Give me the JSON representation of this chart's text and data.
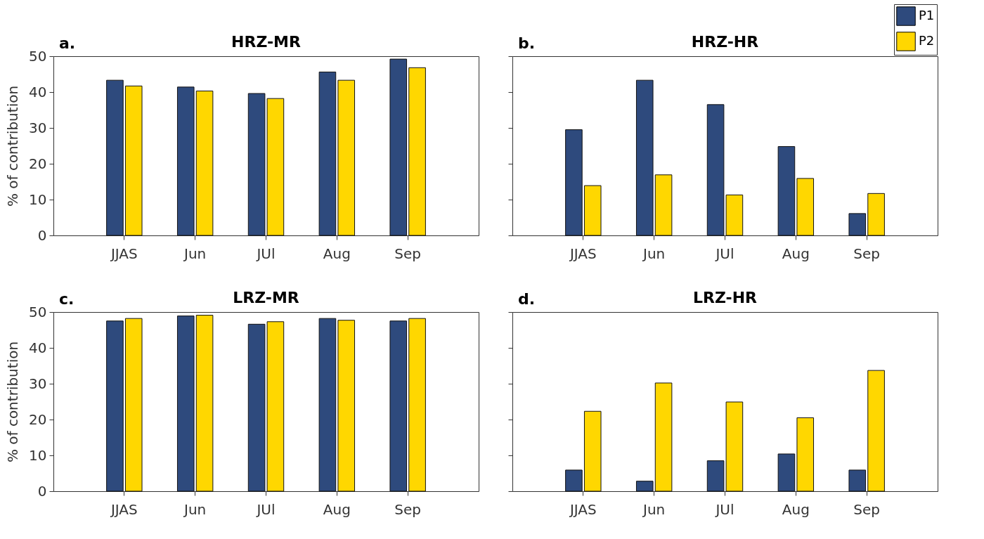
{
  "chart_data": [
    {
      "type": "bar",
      "title": "HRZ-MR",
      "annotations": [
        "a."
      ],
      "ylabel": "% of contribution",
      "categories": [
        "JJAS",
        "Jun",
        "JUl",
        "Aug",
        "Sep"
      ],
      "ylim": [
        0,
        50
      ],
      "yticks": [
        0,
        10,
        20,
        30,
        40,
        50
      ],
      "grid": false,
      "legend": false,
      "series": [
        {
          "color": "#2e4a7d",
          "values": [
            43.3,
            41.4,
            39.6,
            45.6,
            49.2
          ]
        },
        {
          "color": "#ffd700",
          "values": [
            41.7,
            40.3,
            38.2,
            43.3,
            46.8
          ]
        }
      ]
    },
    {
      "type": "bar",
      "title": "HRZ-HR",
      "annotations": [
        "b."
      ],
      "categories": [
        "JJAS",
        "Jun",
        "JUl",
        "Aug",
        "Sep"
      ],
      "ylim": [
        0,
        50
      ],
      "yticks": [
        0,
        10,
        20,
        30,
        40,
        50
      ],
      "tick_labels": "x",
      "grid": false,
      "legend": "top right",
      "series": [
        {
          "name": "P1",
          "color": "#2e4a7d",
          "values": [
            29.5,
            43.3,
            36.5,
            24.8,
            6.1
          ]
        },
        {
          "name": "P2",
          "color": "#ffd700",
          "values": [
            13.9,
            16.9,
            11.3,
            15.9,
            11.7
          ]
        }
      ]
    },
    {
      "type": "bar",
      "title": "LRZ-MR",
      "annotations": [
        "c."
      ],
      "ylabel": "% of contribution",
      "categories": [
        "JJAS",
        "Jun",
        "JUl",
        "Aug",
        "Sep"
      ],
      "ylim": [
        0,
        50
      ],
      "yticks": [
        0,
        10,
        20,
        30,
        40,
        50
      ],
      "grid": false,
      "legend": false,
      "series": [
        {
          "color": "#2e4a7d",
          "values": [
            47.5,
            48.9,
            46.6,
            48.2,
            47.5
          ]
        },
        {
          "color": "#ffd700",
          "values": [
            48.2,
            49.1,
            47.3,
            47.7,
            48.2
          ]
        }
      ]
    },
    {
      "type": "bar",
      "title": "LRZ-HR",
      "annotations": [
        "d."
      ],
      "categories": [
        "JJAS",
        "Jun",
        "JUl",
        "Aug",
        "Sep"
      ],
      "ylim": [
        0,
        50
      ],
      "yticks": [
        0,
        10,
        20,
        30,
        40,
        50
      ],
      "tick_labels": "x",
      "grid": false,
      "legend": false,
      "series": [
        {
          "color": "#2e4a7d",
          "values": [
            5.9,
            2.8,
            8.5,
            10.4,
            5.9
          ]
        },
        {
          "color": "#ffd700",
          "values": [
            22.3,
            30.2,
            24.9,
            20.5,
            33.7
          ]
        }
      ]
    }
  ]
}
